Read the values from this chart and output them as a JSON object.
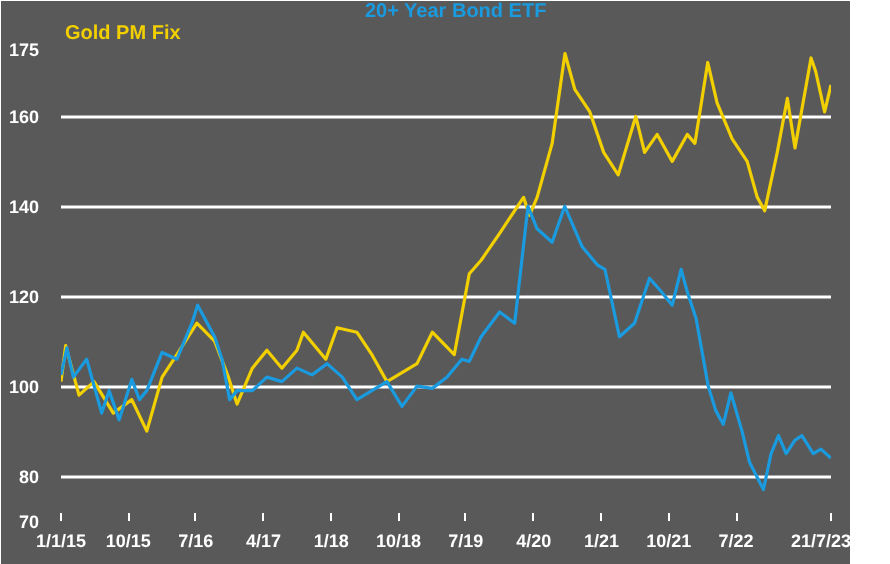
{
  "chart_data": {
    "type": "line",
    "series": [
      {
        "name": "Gold PM Fix",
        "color": "#f2d000",
        "x": [
          "2015-01-01",
          "2015-01-20",
          "2015-03-15",
          "2015-05-15",
          "2015-08-01",
          "2015-10-15",
          "2015-12-15",
          "2016-02-15",
          "2016-04-15",
          "2016-07-05",
          "2016-09-15",
          "2016-11-10",
          "2016-12-15",
          "2017-02-15",
          "2017-04-15",
          "2017-06-15",
          "2017-08-15",
          "2017-09-10",
          "2017-12-10",
          "2018-01-25",
          "2018-04-15",
          "2018-06-15",
          "2018-08-15",
          "2018-10-15",
          "2018-12-15",
          "2019-02-15",
          "2019-05-15",
          "2019-07-15",
          "2019-09-01",
          "2019-11-15",
          "2020-02-20",
          "2020-03-15",
          "2020-04-15",
          "2020-06-15",
          "2020-08-06",
          "2020-09-15",
          "2020-11-15",
          "2021-01-10",
          "2021-03-10",
          "2021-05-20",
          "2021-06-25",
          "2021-08-15",
          "2021-10-15",
          "2021-12-15",
          "2022-01-15",
          "2022-03-08",
          "2022-04-15",
          "2022-06-15",
          "2022-08-15",
          "2022-09-25",
          "2022-10-25",
          "2022-12-15",
          "2023-01-25",
          "2023-02-25",
          "2023-05-01",
          "2023-05-20",
          "2023-06-25",
          "2023-07-21"
        ],
        "values": [
          101,
          109,
          98,
          101,
          94,
          97,
          90,
          102,
          107,
          114,
          110,
          102,
          96,
          104,
          108,
          104,
          108,
          112,
          106,
          113,
          112,
          107,
          101,
          103,
          105,
          112,
          107,
          125,
          128,
          134,
          142,
          138,
          142,
          154,
          174,
          166,
          161,
          152,
          147,
          160,
          152,
          156,
          150,
          156,
          154,
          172,
          163,
          155,
          150,
          142,
          139,
          152,
          164,
          153,
          173,
          170,
          161,
          167
        ]
      },
      {
        "name": "20+ Year Bond ETF",
        "color": "#1a9be0",
        "x": [
          "2015-01-01",
          "2015-01-25",
          "2015-02-20",
          "2015-04-15",
          "2015-06-15",
          "2015-07-15",
          "2015-08-25",
          "2015-10-15",
          "2015-11-15",
          "2015-12-15",
          "2016-02-15",
          "2016-04-15",
          "2016-06-15",
          "2016-07-08",
          "2016-09-15",
          "2016-10-15",
          "2016-11-15",
          "2016-12-15",
          "2017-02-15",
          "2017-04-15",
          "2017-06-15",
          "2017-08-15",
          "2017-10-15",
          "2017-12-15",
          "2018-02-15",
          "2018-04-15",
          "2018-06-15",
          "2018-08-15",
          "2018-10-15",
          "2018-12-15",
          "2019-02-15",
          "2019-04-15",
          "2019-06-15",
          "2019-07-15",
          "2019-09-01",
          "2019-11-15",
          "2020-01-15",
          "2020-03-09",
          "2020-04-15",
          "2020-06-15",
          "2020-08-05",
          "2020-10-15",
          "2020-12-15",
          "2021-01-15",
          "2021-03-15",
          "2021-05-15",
          "2021-07-15",
          "2021-09-01",
          "2021-10-15",
          "2021-11-20",
          "2021-12-15",
          "2022-01-20",
          "2022-03-10",
          "2022-04-10",
          "2022-05-10",
          "2022-06-10",
          "2022-07-25",
          "2022-08-25",
          "2022-10-20",
          "2022-11-20",
          "2022-12-20",
          "2023-01-20",
          "2023-02-25",
          "2023-03-25",
          "2023-05-10",
          "2023-06-10",
          "2023-07-21"
        ],
        "values": [
          102.5,
          108.5,
          102,
          106,
          94,
          99,
          92.5,
          101.5,
          97,
          99,
          107.5,
          106,
          114,
          118,
          111,
          106,
          97,
          99,
          99,
          102,
          101,
          104,
          102.5,
          105,
          102,
          97,
          99,
          101,
          95.5,
          100,
          99.5,
          102,
          106,
          105.5,
          111,
          116.5,
          114,
          140,
          135,
          132,
          140,
          131,
          127,
          126,
          111,
          114,
          124,
          121,
          118,
          126,
          121,
          115,
          100,
          94.5,
          91.5,
          98.5,
          90,
          83,
          77,
          85,
          89,
          85,
          88,
          89,
          85,
          86,
          84
        ]
      }
    ],
    "xlim": [
      "2015-01-01",
      "2023-07-21"
    ],
    "xticks": [
      {
        "value": "2015-01-01",
        "label": "1/1/15"
      },
      {
        "value": "2015-10-01",
        "label": "10/15"
      },
      {
        "value": "2016-07-01",
        "label": "7/16"
      },
      {
        "value": "2017-04-01",
        "label": "4/17"
      },
      {
        "value": "2018-01-01",
        "label": "1/18"
      },
      {
        "value": "2018-10-01",
        "label": "10/18"
      },
      {
        "value": "2019-07-01",
        "label": "7/19"
      },
      {
        "value": "2020-04-01",
        "label": "4/20"
      },
      {
        "value": "2021-01-01",
        "label": "1/21"
      },
      {
        "value": "2021-10-01",
        "label": "10/21"
      },
      {
        "value": "2022-07-01",
        "label": "7/22"
      },
      {
        "value": "2023-07-21",
        "label": "21/7/23"
      }
    ],
    "ylim": [
      70,
      175
    ],
    "yticks": [
      70,
      80,
      100,
      120,
      140,
      160,
      175
    ],
    "grid": "y",
    "legend": "top",
    "marker": "none",
    "line_style": "solid"
  }
}
